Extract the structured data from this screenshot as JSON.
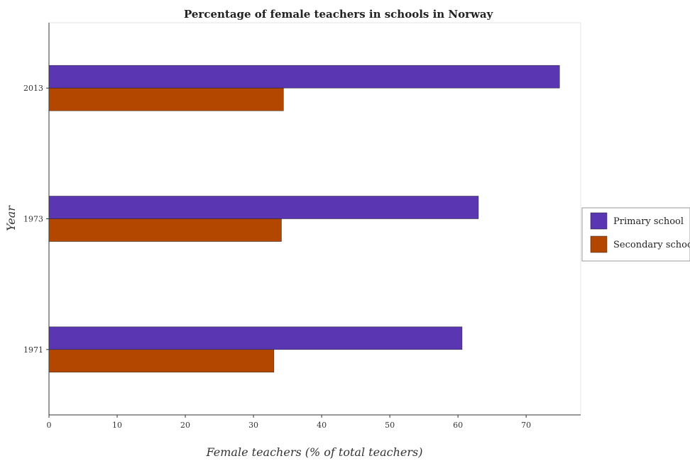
{
  "chart_data": {
    "type": "bar",
    "orientation": "horizontal",
    "title": "Percentage of female teachers in schools in Norway",
    "xlabel": "Female teachers (% of total teachers)",
    "ylabel": "Year",
    "categories": [
      "1971",
      "1973",
      "2013"
    ],
    "series": [
      {
        "name": "Primary school",
        "values": [
          60.6,
          63.0,
          74.9
        ],
        "color": "#5a36b3"
      },
      {
        "name": "Secondary school",
        "values": [
          33.0,
          34.1,
          34.4
        ],
        "color": "#b34700"
      }
    ],
    "xlim": [
      0,
      78
    ],
    "xticks": [
      0,
      10,
      20,
      30,
      40,
      50,
      60,
      70
    ],
    "legend_position": "right",
    "grid": false
  }
}
